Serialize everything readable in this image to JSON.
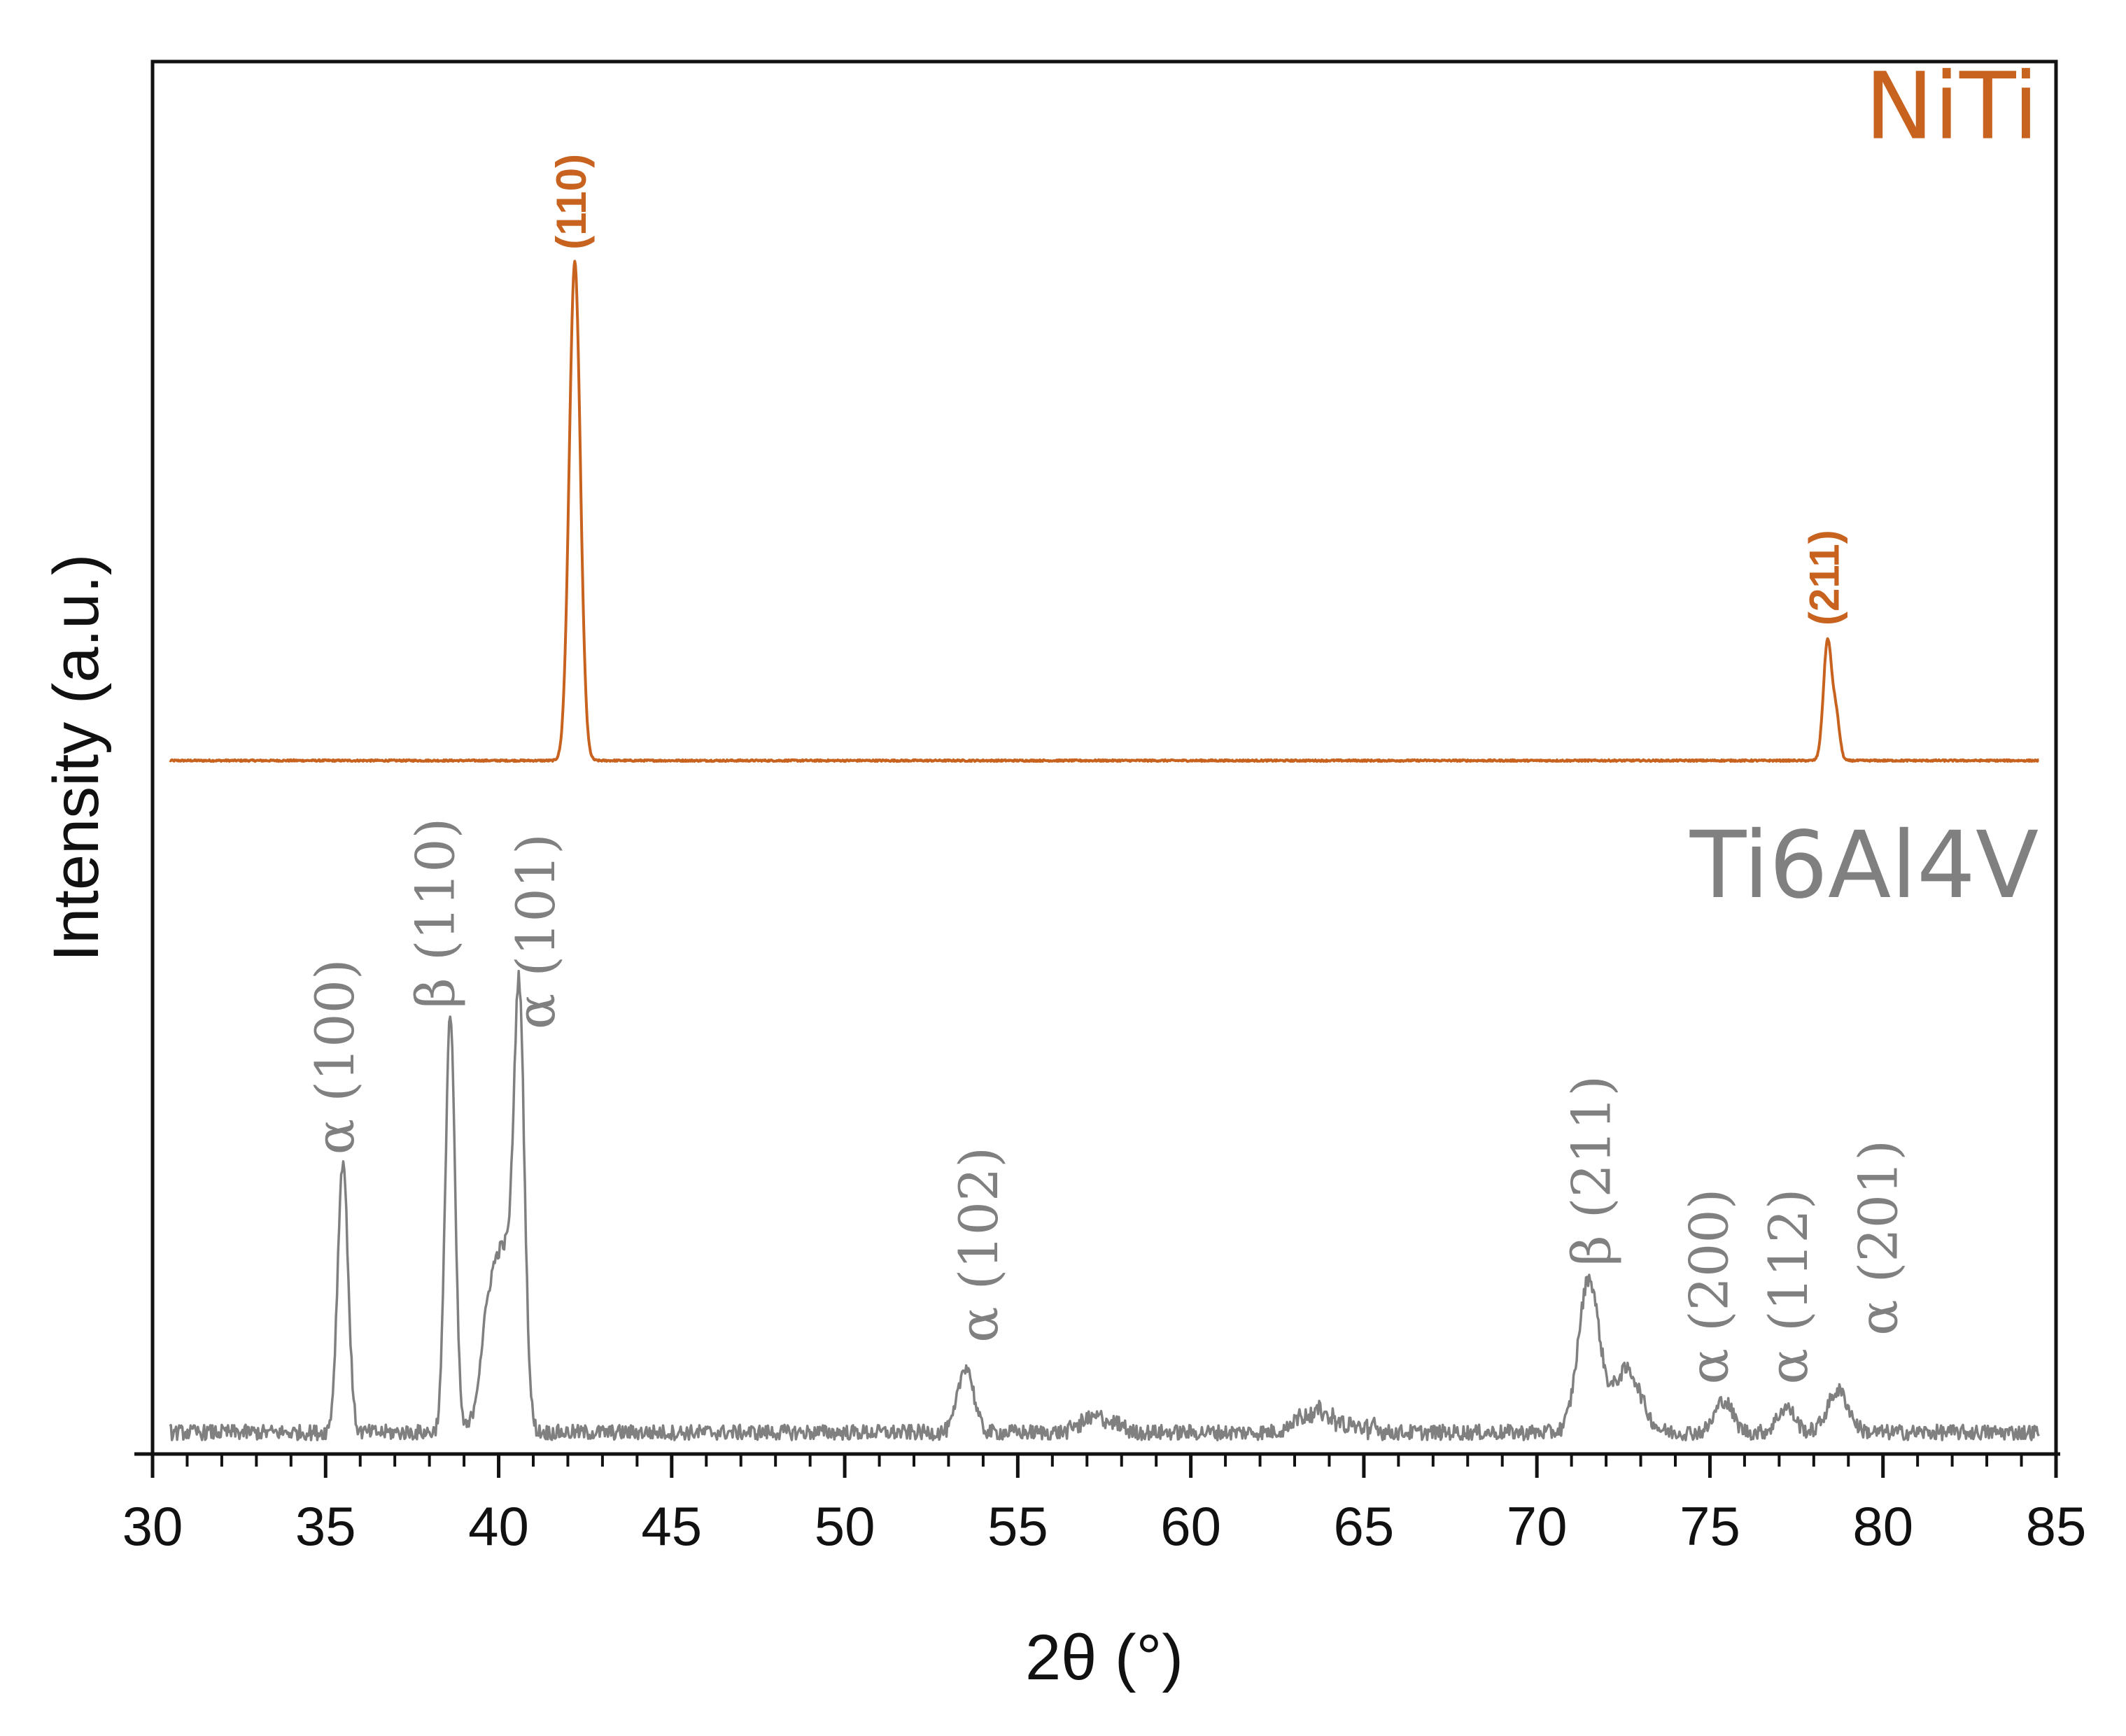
{
  "chart_data": {
    "type": "line",
    "xlabel": "2θ (°)",
    "ylabel": "Intensity (a.u.)",
    "xlim": [
      30,
      85
    ],
    "ylim": [
      0,
      100
    ],
    "x_ticks": [
      30,
      35,
      40,
      45,
      50,
      55,
      60,
      65,
      70,
      75,
      80,
      85
    ],
    "grid": false,
    "series": [
      {
        "name": "NiTi",
        "color": "#c8621f",
        "baseline": 49.8,
        "peaks": [
          {
            "x": 42.2,
            "height": 35.8,
            "width": 0.16,
            "label": "(110)"
          },
          {
            "x": 78.4,
            "height": 8.6,
            "width": 0.12,
            "label": "(211)"
          },
          {
            "x": 78.65,
            "height": 3.0,
            "width": 0.1
          }
        ]
      },
      {
        "name": "Ti6Al4V",
        "color": "#808080",
        "baseline": 1.0,
        "peaks": [
          {
            "x": 35.5,
            "height": 19.5,
            "width": 0.15,
            "label": "α (100)"
          },
          {
            "x": 38.6,
            "height": 30.0,
            "width": 0.14,
            "label": "β (110)"
          },
          {
            "x": 39.7,
            "height": 7.0,
            "width": 0.25
          },
          {
            "x": 40.2,
            "height": 12.0,
            "width": 0.3
          },
          {
            "x": 40.6,
            "height": 27.5,
            "width": 0.15,
            "label": "α (101)"
          },
          {
            "x": 53.5,
            "height": 4.8,
            "width": 0.22,
            "label": "α (102)"
          },
          {
            "x": 57.3,
            "height": 0.8,
            "width": 0.4
          },
          {
            "x": 63.6,
            "height": 1.2,
            "width": 0.5
          },
          {
            "x": 71.5,
            "height": 11.0,
            "width": 0.3,
            "label": "β (211)"
          },
          {
            "x": 72.6,
            "height": 4.5,
            "width": 0.4
          },
          {
            "x": 75.4,
            "height": 2.3,
            "width": 0.25,
            "label": "α (200)"
          },
          {
            "x": 77.2,
            "height": 1.8,
            "width": 0.25,
            "label": "α (112)"
          },
          {
            "x": 78.7,
            "height": 3.0,
            "width": 0.3,
            "label": "α (201)"
          }
        ]
      }
    ],
    "peak_labels": [
      {
        "series": "NiTi",
        "text": "(110)",
        "x": 42.2,
        "y": 86.5
      },
      {
        "series": "NiTi",
        "text": "(211)",
        "x": 78.4,
        "y": 59.5
      },
      {
        "series": "Ti6Al4V",
        "text": "α (100)",
        "x": 35.4,
        "y": 21.5
      },
      {
        "series": "Ti6Al4V",
        "text": "β (110)",
        "x": 38.3,
        "y": 32.0
      },
      {
        "series": "Ti6Al4V",
        "text": "α (101)",
        "x": 41.2,
        "y": 30.5
      },
      {
        "series": "Ti6Al4V",
        "text": "α (102)",
        "x": 54.0,
        "y": 8.0
      },
      {
        "series": "Ti6Al4V",
        "text": "β (211)",
        "x": 71.7,
        "y": 13.5
      },
      {
        "series": "Ti6Al4V",
        "text": "α (200)",
        "x": 75.1,
        "y": 5.0
      },
      {
        "series": "Ti6Al4V",
        "text": "α (112)",
        "x": 77.4,
        "y": 5.0
      },
      {
        "series": "Ti6Al4V",
        "text": "α (201)",
        "x": 80.0,
        "y": 8.5
      }
    ],
    "series_labels": [
      {
        "text": "NiTi",
        "color": "#c8621f",
        "x": 84.5,
        "y": 94.5
      },
      {
        "text": "Ti6Al4V",
        "color": "#808080",
        "x": 84.5,
        "y": 40.0
      }
    ]
  }
}
